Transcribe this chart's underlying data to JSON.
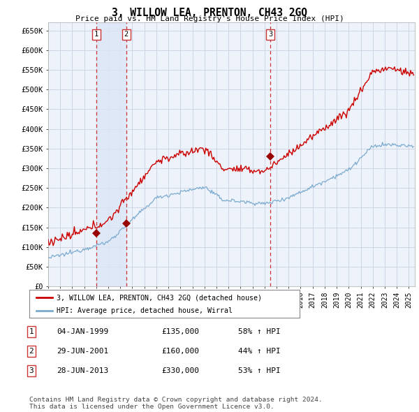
{
  "title": "3, WILLOW LEA, PRENTON, CH43 2GQ",
  "subtitle": "Price paid vs. HM Land Registry's House Price Index (HPI)",
  "ylabel_ticks": [
    "£0",
    "£50K",
    "£100K",
    "£150K",
    "£200K",
    "£250K",
    "£300K",
    "£350K",
    "£400K",
    "£450K",
    "£500K",
    "£550K",
    "£600K",
    "£650K"
  ],
  "ytick_values": [
    0,
    50000,
    100000,
    150000,
    200000,
    250000,
    300000,
    350000,
    400000,
    450000,
    500000,
    550000,
    600000,
    650000
  ],
  "ylim": [
    0,
    670000
  ],
  "xlim_start": 1995.0,
  "xlim_end": 2025.5,
  "grid_color": "#c8d0e0",
  "plot_bg": "#eef2fa",
  "shade_color": "#dce6f5",
  "red_color": "#cc0000",
  "blue_color": "#7aabcf",
  "sale_marker_color": "#990000",
  "sale_dashed_color": "#cc3333",
  "transactions": [
    {
      "num": 1,
      "date_x": 1999.01,
      "price": 135000
    },
    {
      "num": 2,
      "date_x": 2001.49,
      "price": 160000
    },
    {
      "num": 3,
      "date_x": 2013.49,
      "price": 330000
    }
  ],
  "legend_label_red": "3, WILLOW LEA, PRENTON, CH43 2GQ (detached house)",
  "legend_label_blue": "HPI: Average price, detached house, Wirral",
  "footer": "Contains HM Land Registry data © Crown copyright and database right 2024.\nThis data is licensed under the Open Government Licence v3.0.",
  "table_rows": [
    [
      "1",
      "04-JAN-1999",
      "£135,000",
      "58% ↑ HPI"
    ],
    [
      "2",
      "29-JUN-2001",
      "£160,000",
      "44% ↑ HPI"
    ],
    [
      "3",
      "28-JUN-2013",
      "£330,000",
      "53% ↑ HPI"
    ]
  ]
}
